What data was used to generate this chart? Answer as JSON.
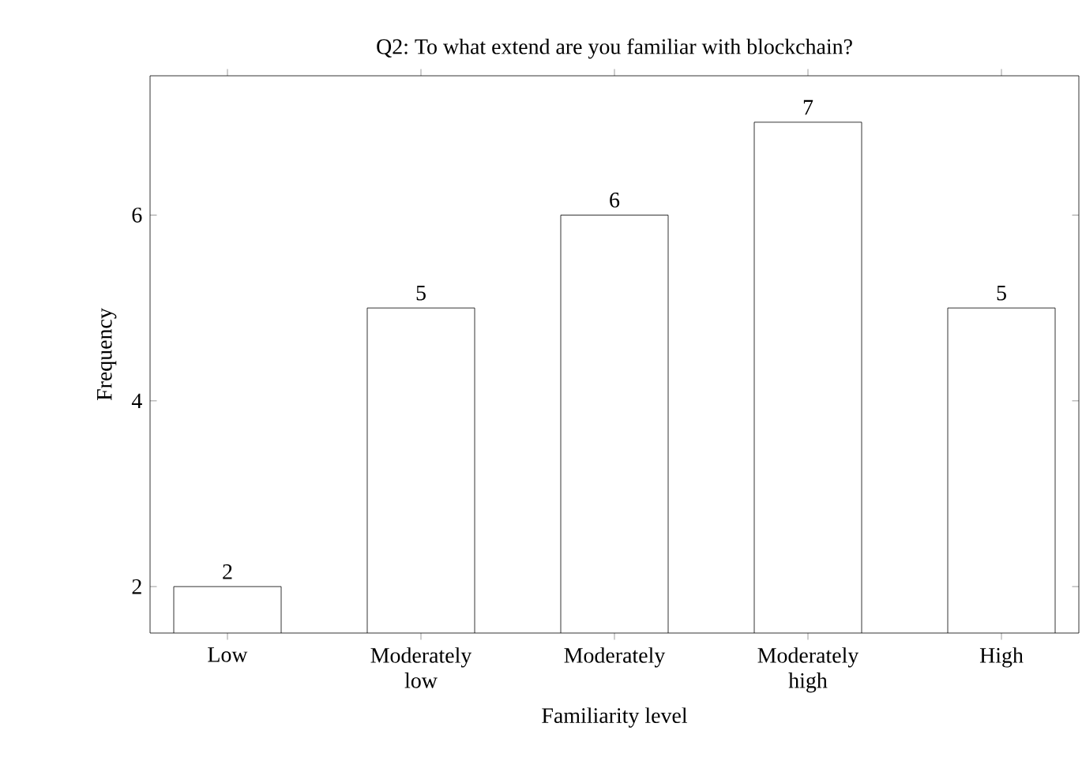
{
  "chart_data": {
    "type": "bar",
    "title": "Q2: To what extend are you familiar with blockchain?",
    "xlabel": "Familiarity level",
    "ylabel": "Frequency",
    "categories": [
      "Low",
      "Moderately low",
      "Moderately",
      "Moderately high",
      "High"
    ],
    "values": [
      2,
      5,
      6,
      7,
      5
    ],
    "color": "#ffffff",
    "ylim": [
      1.5,
      7.5
    ],
    "yticks": [
      2,
      4,
      6
    ],
    "data_labels": true
  }
}
